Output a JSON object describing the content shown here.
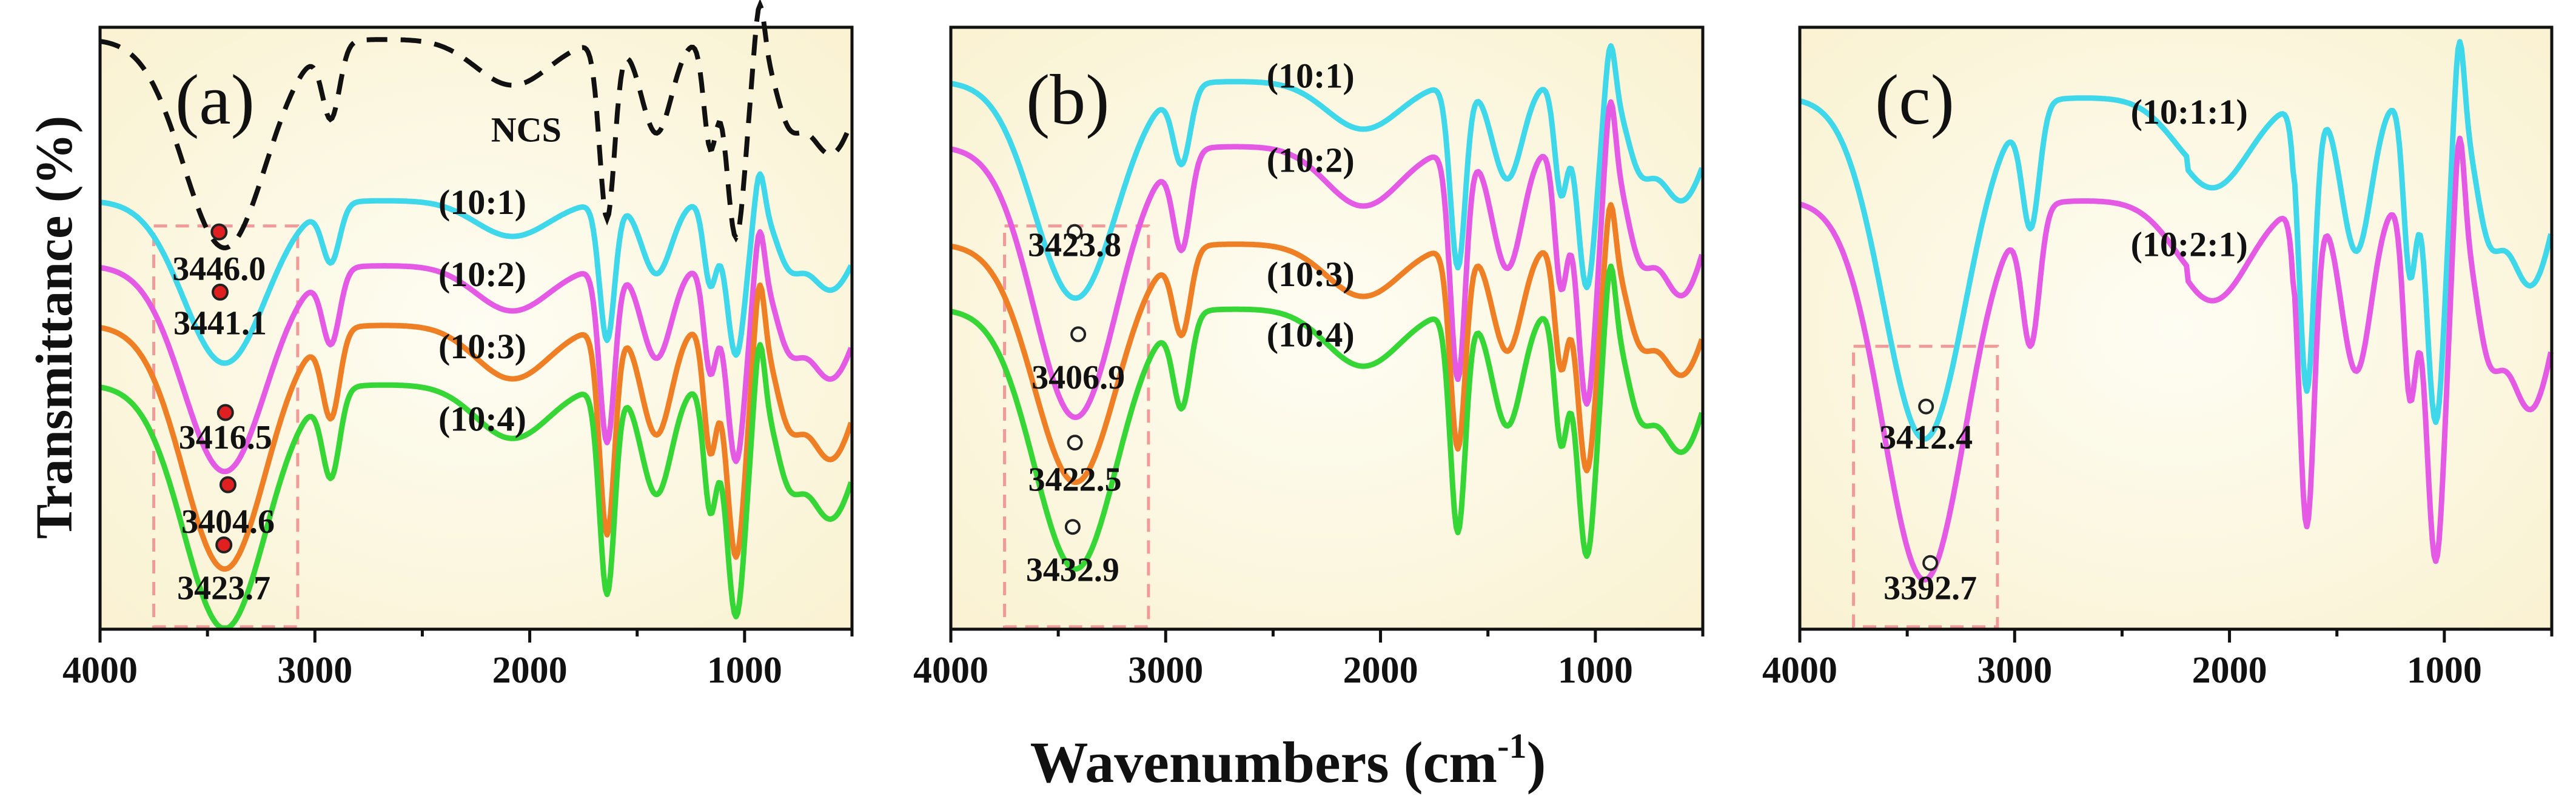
{
  "figure": {
    "ylabel": "Transmittance (%)",
    "xlabel_main": "Wavenumbers (cm",
    "xlabel_sup": "-1",
    "xlabel_end": ")"
  },
  "colors": {
    "background": "#fdfbe9",
    "cyan": "#3ed8ea",
    "magenta": "#e45ae4",
    "orange": "#ef7f25",
    "green": "#35d635",
    "ncs": "#111111",
    "box": "#f09a9a",
    "marker_red": "#e02020"
  },
  "chart_data": [
    {
      "type": "line",
      "panel": "(a)",
      "xlim": [
        4000,
        500
      ],
      "x_ticks": [
        "4000",
        "3000",
        "2000",
        "1000"
      ],
      "series": [
        {
          "name": "NCS",
          "color_key": "ncs",
          "dashed": true,
          "label_x": 2300,
          "label_y": 0.8,
          "y_at_peak": null
        },
        {
          "name": "(10:1)",
          "color_key": "cyan",
          "label_x": 2700,
          "label_y": 0.68
        },
        {
          "name": "(10:2)",
          "color_key": "magenta",
          "label_x": 2700,
          "label_y": 0.56
        },
        {
          "name": "(10:3)",
          "color_key": "orange",
          "label_x": 2700,
          "label_y": 0.43
        },
        {
          "name": "(10:4)",
          "color_key": "green",
          "label_x": 2700,
          "label_y": 0.31
        }
      ],
      "peaks": [
        {
          "label": "3446.0",
          "wavenumber": 3446.0,
          "marker": "red"
        },
        {
          "label": "3441.1",
          "wavenumber": 3441.1,
          "marker": "red"
        },
        {
          "label": "3416.5",
          "wavenumber": 3416.5,
          "marker": "red"
        },
        {
          "label": "3404.6",
          "wavenumber": 3404.6,
          "marker": "red"
        },
        {
          "label": "3423.7",
          "wavenumber": 3423.7,
          "marker": "red"
        }
      ],
      "highlight_range": [
        3750,
        3080
      ]
    },
    {
      "type": "line",
      "panel": "(b)",
      "xlim": [
        4000,
        500
      ],
      "x_ticks": [
        "4000",
        "3000",
        "2000",
        "1000"
      ],
      "series": [
        {
          "name": "(10:1)",
          "color_key": "cyan"
        },
        {
          "name": "(10:2)",
          "color_key": "magenta"
        },
        {
          "name": "(10:3)",
          "color_key": "orange"
        },
        {
          "name": "(10:4)",
          "color_key": "green"
        }
      ],
      "peaks": [
        {
          "label": "3423.8",
          "wavenumber": 3423.8,
          "marker": "open"
        },
        {
          "label": "3406.9",
          "wavenumber": 3406.9,
          "marker": "open"
        },
        {
          "label": "3422.5",
          "wavenumber": 3422.5,
          "marker": "open"
        },
        {
          "label": "3432.9",
          "wavenumber": 3432.9,
          "marker": "open"
        }
      ],
      "highlight_range": [
        3750,
        3080
      ]
    },
    {
      "type": "line",
      "panel": "(c)",
      "xlim": [
        4000,
        500
      ],
      "x_ticks": [
        "4000",
        "3000",
        "2000",
        "1000"
      ],
      "series": [
        {
          "name": "(10:1:1)",
          "color_key": "cyan"
        },
        {
          "name": "(10:2:1)",
          "color_key": "magenta"
        }
      ],
      "peaks": [
        {
          "label": "3412.4",
          "wavenumber": 3412.4,
          "marker": "open"
        },
        {
          "label": "3392.7",
          "wavenumber": 3392.7,
          "marker": "open"
        }
      ],
      "highlight_range": [
        3750,
        3080
      ]
    }
  ]
}
